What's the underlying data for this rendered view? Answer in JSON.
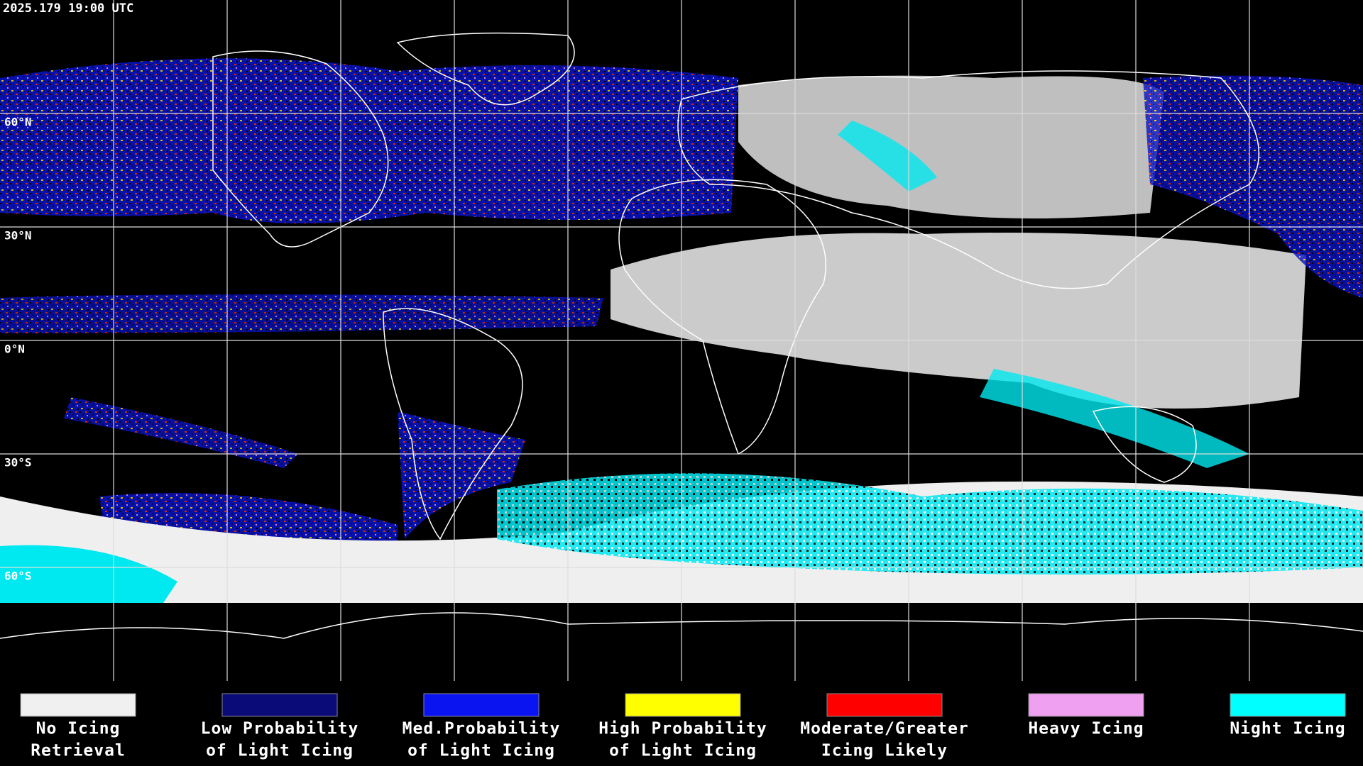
{
  "header": {
    "timestamp": "2025.179 19:00 UTC"
  },
  "map": {
    "lat_labels": [
      "60°N",
      "30°N",
      "0°N",
      "30°S",
      "60°S"
    ]
  },
  "legend": {
    "items": [
      {
        "label": [
          "No Icing",
          "Retrieval"
        ],
        "color": "#f0f0f0"
      },
      {
        "label": [
          "Low Probability",
          "of Light Icing"
        ],
        "color": "#0a0a78"
      },
      {
        "label": [
          "Med.Probability",
          "of Light Icing"
        ],
        "color": "#0a14f0"
      },
      {
        "label": [
          "High Probability",
          "of Light Icing"
        ],
        "color": "#ffff00"
      },
      {
        "label": [
          "Moderate/Greater",
          "Icing Likely"
        ],
        "color": "#ff0000"
      },
      {
        "label": [
          "Heavy Icing"
        ],
        "color": "#f0a0f0"
      },
      {
        "label": [
          "Night Icing"
        ],
        "color": "#00ffff"
      }
    ]
  }
}
